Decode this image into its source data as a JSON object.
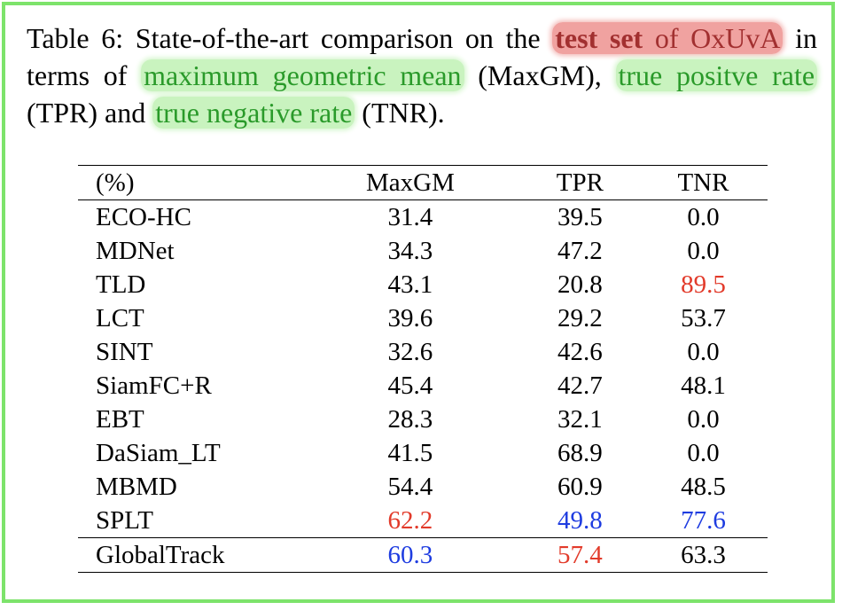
{
  "caption": {
    "prefix": "Table 6: State-of-the-art comparison on the ",
    "hl_test_set": "test set",
    "hl_of_oxuva": " of OxUvA",
    "mid1": " in terms of ",
    "hl_maxgm": "maximum geometric mean",
    "mid2": " (MaxGM), ",
    "hl_tpr": "true positve rate",
    "mid3": " (TPR) and ",
    "hl_tnr": "true negative rate",
    "suffix": " (TNR)."
  },
  "table": {
    "headers": [
      "(%)",
      "MaxGM",
      "TPR",
      "TNR"
    ],
    "rows": [
      {
        "name": "ECO-HC",
        "maxgm": "31.4",
        "tpr": "39.5",
        "tnr": "0.0"
      },
      {
        "name": "MDNet",
        "maxgm": "34.3",
        "tpr": "47.2",
        "tnr": "0.0"
      },
      {
        "name": "TLD",
        "maxgm": "43.1",
        "tpr": "20.8",
        "tnr": "89.5"
      },
      {
        "name": "LCT",
        "maxgm": "39.6",
        "tpr": "29.2",
        "tnr": "53.7"
      },
      {
        "name": "SINT",
        "maxgm": "32.6",
        "tpr": "42.6",
        "tnr": "0.0"
      },
      {
        "name": "SiamFC+R",
        "maxgm": "45.4",
        "tpr": "42.7",
        "tnr": "48.1"
      },
      {
        "name": "EBT",
        "maxgm": "28.3",
        "tpr": "32.1",
        "tnr": "0.0"
      },
      {
        "name": "DaSiam_LT",
        "maxgm": "41.5",
        "tpr": "68.9",
        "tnr": "0.0"
      },
      {
        "name": "MBMD",
        "maxgm": "54.4",
        "tpr": "60.9",
        "tnr": "48.5"
      },
      {
        "name": "SPLT",
        "maxgm": "62.2",
        "tpr": "49.8",
        "tnr": "77.6"
      },
      {
        "name": "GlobalTrack",
        "maxgm": "60.3",
        "tpr": "57.4",
        "tnr": "63.3"
      }
    ]
  },
  "colors": {
    "best": "#e23a2a",
    "second": "#1e3ce0",
    "border": "#7de36b",
    "highlight_red": "#f0a2a0",
    "highlight_green": "#c9f3bf"
  }
}
